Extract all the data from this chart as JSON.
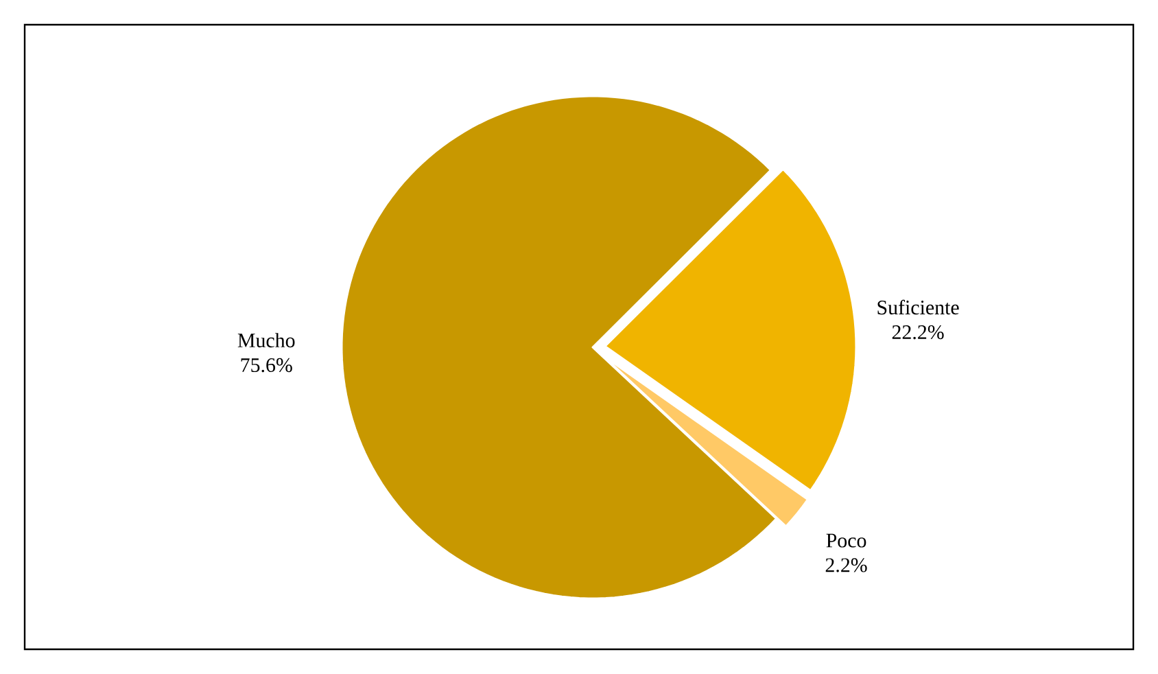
{
  "chart_data": {
    "type": "pie",
    "categories": [
      "Mucho",
      "Suficiente",
      "Poco"
    ],
    "values": [
      75.6,
      22.2,
      2.2
    ],
    "colors": [
      "#c89800",
      "#f0b400",
      "#ffc966"
    ],
    "value_labels": [
      "75.6%",
      "22.2%",
      "2.2%"
    ]
  }
}
